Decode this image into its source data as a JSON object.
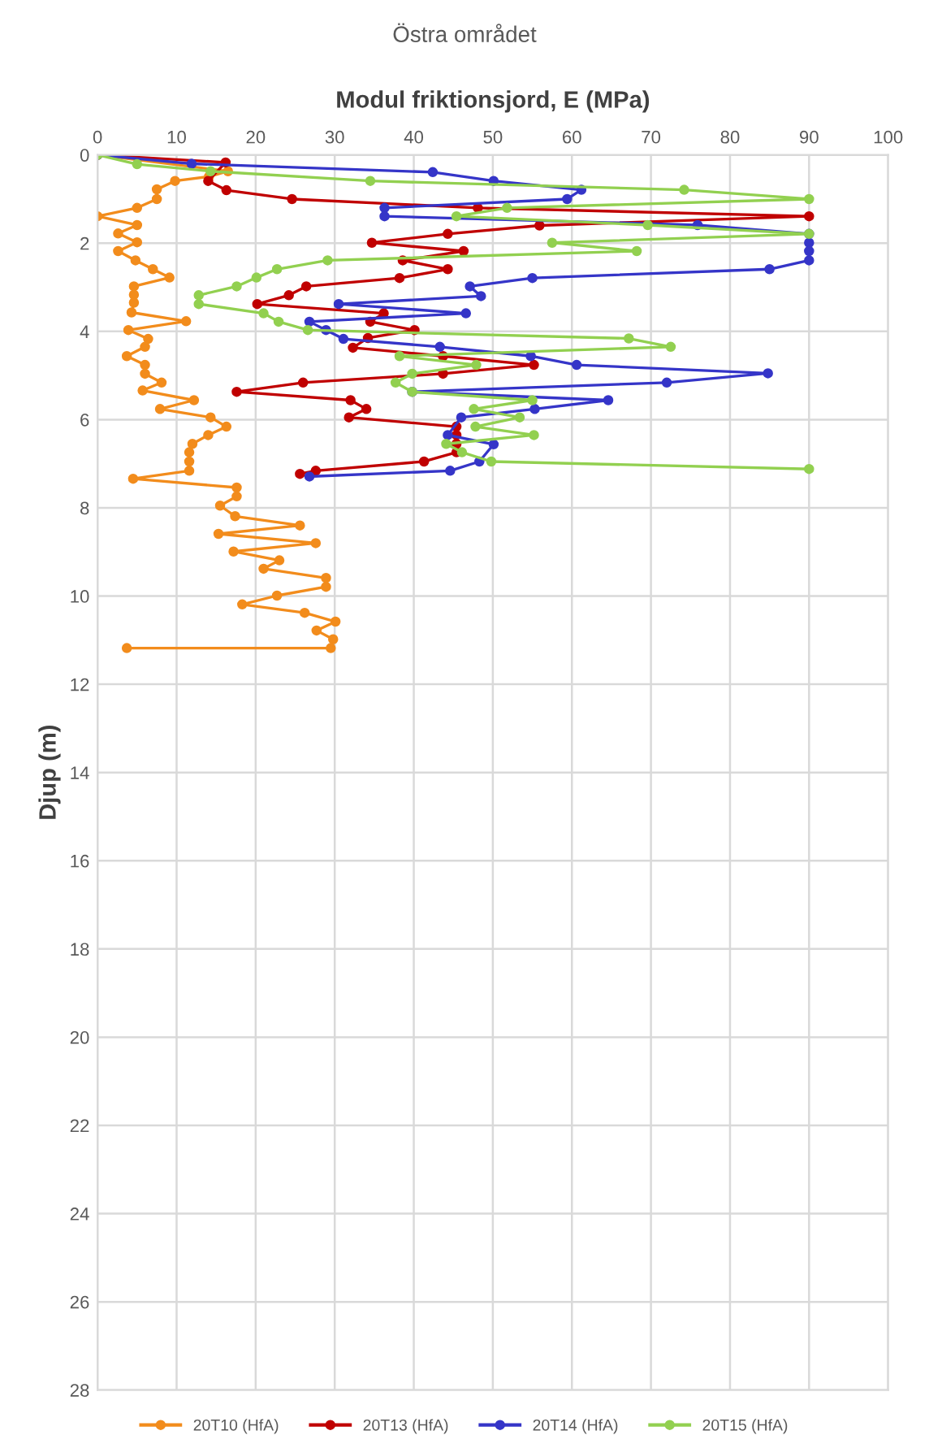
{
  "chart_data": {
    "type": "line",
    "title": "Östra området",
    "xlabel": "Modul friktionsjord, E (MPa)",
    "ylabel": "Djup (m)",
    "xlim": [
      0,
      100
    ],
    "xticks": [
      0,
      10,
      20,
      30,
      40,
      50,
      60,
      70,
      80,
      90,
      100
    ],
    "ylim": [
      28,
      0
    ],
    "yticks": [
      0,
      2,
      4,
      6,
      8,
      10,
      12,
      14,
      16,
      18,
      20,
      22,
      24,
      26,
      28
    ],
    "grid": true,
    "legend": "bottom",
    "marker": "circle",
    "line_style": "solid",
    "series": [
      {
        "name": "20T10 (HfA)",
        "color": "#f28c1c",
        "x": [
          0,
          16.5,
          14.1,
          9.8,
          7.5,
          7.5,
          5.0,
          0,
          5.0,
          2.6,
          5.0,
          2.6,
          4.8,
          7.0,
          9.1,
          4.6,
          4.6,
          4.6,
          4.3,
          11.2,
          3.9,
          6.4,
          6.0,
          3.7,
          6.0,
          6.0,
          8.1,
          5.7,
          12.2,
          7.9,
          14.3,
          16.3,
          14.0,
          12.0,
          11.6,
          11.6,
          11.6,
          4.5,
          17.6,
          17.6,
          15.5,
          17.4,
          25.6,
          15.3,
          27.6,
          17.2,
          23.0,
          21.0,
          28.9,
          28.9,
          22.7,
          18.3,
          26.2,
          30.1,
          27.7,
          29.8,
          29.5,
          3.7
        ],
        "values": [
          0,
          0.37,
          0.49,
          0.59,
          0.78,
          1.0,
          1.2,
          1.39,
          1.59,
          1.78,
          1.98,
          2.18,
          2.39,
          2.59,
          2.78,
          2.98,
          3.17,
          3.35,
          3.57,
          3.77,
          3.97,
          4.17,
          4.35,
          4.56,
          4.76,
          4.96,
          5.16,
          5.34,
          5.56,
          5.76,
          5.95,
          6.16,
          6.35,
          6.55,
          6.74,
          6.95,
          7.16,
          7.34,
          7.54,
          7.74,
          7.95,
          8.19,
          8.4,
          8.59,
          8.8,
          8.99,
          9.19,
          9.38,
          9.59,
          9.79,
          9.99,
          10.19,
          10.38,
          10.58,
          10.78,
          10.98,
          11.18,
          11.18
        ]
      },
      {
        "name": "20T13 (HfA)",
        "color": "#c00000",
        "x": [
          0,
          16.2,
          14.0,
          16.3,
          24.6,
          48.1,
          90,
          55.9,
          44.3,
          34.7,
          46.3,
          38.6,
          44.3,
          38.2,
          26.4,
          24.2,
          20.2,
          36.2,
          34.5,
          40.1,
          34.2,
          32.3,
          43.7,
          55.2,
          43.7,
          26.0,
          17.6,
          32.0,
          34.0,
          31.8,
          45.4,
          45.4,
          45.4,
          45.4,
          41.3,
          27.6,
          25.6
        ],
        "values": [
          0,
          0.17,
          0.59,
          0.8,
          1.0,
          1.2,
          1.39,
          1.6,
          1.79,
          1.99,
          2.18,
          2.39,
          2.59,
          2.79,
          2.98,
          3.18,
          3.38,
          3.59,
          3.78,
          3.97,
          4.15,
          4.37,
          4.56,
          4.76,
          4.96,
          5.16,
          5.37,
          5.56,
          5.76,
          5.95,
          6.16,
          6.35,
          6.55,
          6.74,
          6.95,
          7.16,
          7.23
        ]
      },
      {
        "name": "20T14 (HfA)",
        "color": "#3535c8",
        "x": [
          0,
          11.9,
          42.4,
          50.1,
          61.2,
          59.4,
          36.3,
          36.3,
          75.9,
          90,
          90,
          90,
          90,
          85.0,
          55.0,
          47.1,
          48.5,
          30.5,
          46.6,
          26.8,
          28.9,
          31.1,
          43.3,
          54.8,
          60.6,
          84.8,
          72.0,
          39.8,
          64.6,
          55.3,
          46.0,
          44.3,
          50.1,
          48.3,
          44.6,
          26.8
        ],
        "values": [
          0,
          0.2,
          0.39,
          0.59,
          0.79,
          1.0,
          1.2,
          1.39,
          1.59,
          1.79,
          1.99,
          2.18,
          2.39,
          2.59,
          2.79,
          2.98,
          3.2,
          3.38,
          3.59,
          3.78,
          3.97,
          4.17,
          4.35,
          4.56,
          4.76,
          4.95,
          5.16,
          5.37,
          5.56,
          5.76,
          5.95,
          6.35,
          6.56,
          6.95,
          7.16,
          7.29
        ]
      },
      {
        "name": "20T15 (HfA)",
        "color": "#92d050",
        "x": [
          0,
          5.0,
          14.3,
          34.5,
          74.2,
          90,
          51.8,
          45.4,
          69.6,
          90,
          57.5,
          68.2,
          29.1,
          22.7,
          20.1,
          17.6,
          12.8,
          12.8,
          21.0,
          22.9,
          26.6,
          67.2,
          72.5,
          38.2,
          47.9,
          39.8,
          37.7,
          39.8,
          55.0,
          47.6,
          53.4,
          47.8,
          55.2,
          44.1,
          46.1,
          49.8,
          90
        ],
        "values": [
          0,
          0.21,
          0.37,
          0.59,
          0.79,
          1.0,
          1.2,
          1.39,
          1.59,
          1.79,
          1.99,
          2.18,
          2.39,
          2.59,
          2.78,
          2.98,
          3.18,
          3.38,
          3.59,
          3.78,
          3.97,
          4.16,
          4.35,
          4.56,
          4.76,
          4.96,
          5.16,
          5.37,
          5.56,
          5.76,
          5.95,
          6.16,
          6.35,
          6.55,
          6.74,
          6.95,
          7.12
        ]
      }
    ]
  }
}
